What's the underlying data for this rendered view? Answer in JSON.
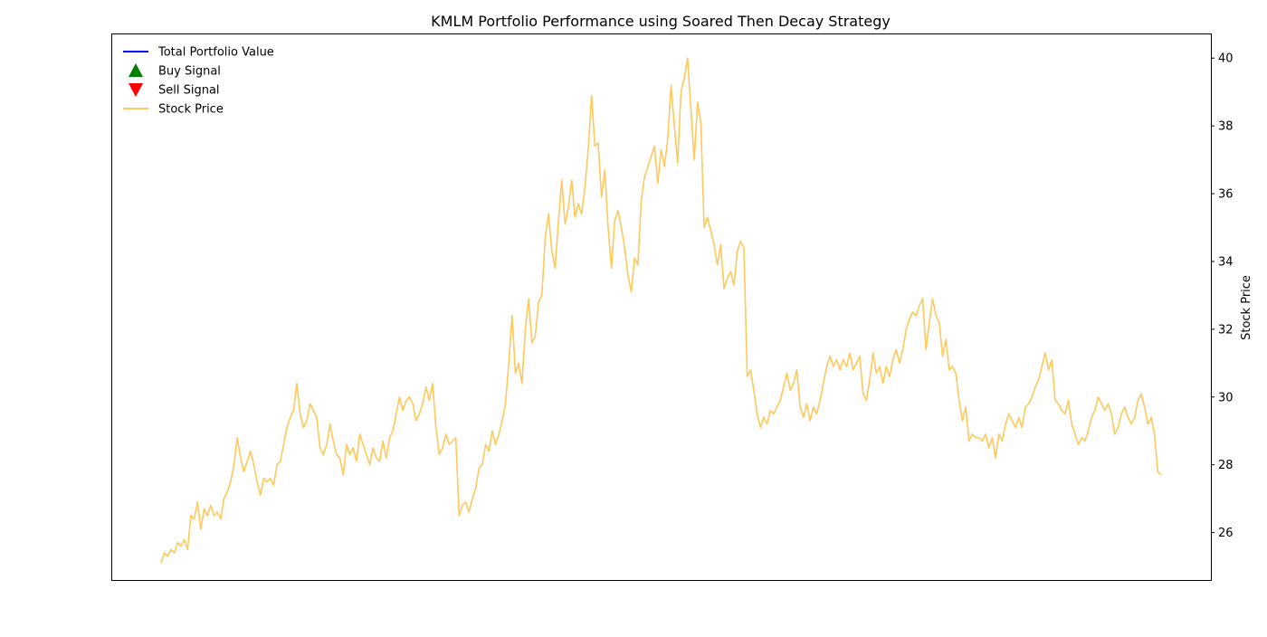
{
  "chart_data": {
    "type": "line",
    "title": "KMLM Portfolio Performance using Soared Then Decay Strategy",
    "xlabel": "",
    "y_right_label": "Stock Price",
    "y_right_lim": [
      24.6,
      40.7
    ],
    "y_right_ticks": [
      26,
      28,
      30,
      32,
      34,
      36,
      38,
      40
    ],
    "grid": false,
    "legend_position": "top-left",
    "legend": [
      {
        "label": "Total Portfolio Value",
        "marker": "line",
        "color": "#0000ff"
      },
      {
        "label": "Buy Signal",
        "marker": "triangle-up",
        "color": "#008000"
      },
      {
        "label": "Sell Signal",
        "marker": "triangle-down",
        "color": "#ff0000"
      },
      {
        "label": "Stock Price",
        "marker": "line",
        "color": "#ffc85a"
      }
    ],
    "series": [
      {
        "name": "Stock Price",
        "color": "#ffc85a",
        "axis": "right",
        "values": [
          25.1,
          25.4,
          25.3,
          25.5,
          25.4,
          25.7,
          25.6,
          25.8,
          25.5,
          26.5,
          26.4,
          26.9,
          26.1,
          26.7,
          26.5,
          26.8,
          26.5,
          26.6,
          26.4,
          27.0,
          27.2,
          27.5,
          28.0,
          28.8,
          28.2,
          27.8,
          28.1,
          28.4,
          28.0,
          27.5,
          27.1,
          27.6,
          27.5,
          27.6,
          27.4,
          28.0,
          28.1,
          28.6,
          29.1,
          29.4,
          29.6,
          30.4,
          29.5,
          29.1,
          29.3,
          29.8,
          29.6,
          29.4,
          28.5,
          28.3,
          28.6,
          29.2,
          28.7,
          28.3,
          28.2,
          27.7,
          28.6,
          28.3,
          28.5,
          28.1,
          28.9,
          28.6,
          28.3,
          28.0,
          28.5,
          28.2,
          28.1,
          28.7,
          28.2,
          28.8,
          29.0,
          29.5,
          30.0,
          29.6,
          29.9,
          30.0,
          29.8,
          29.3,
          29.5,
          29.8,
          30.3,
          29.9,
          30.4,
          29.1,
          28.3,
          28.5,
          28.9,
          28.6,
          28.7,
          28.8,
          26.5,
          26.8,
          26.9,
          26.6,
          27.0,
          27.3,
          27.9,
          28.0,
          28.6,
          28.4,
          29.0,
          28.6,
          28.9,
          29.3,
          29.8,
          31.0,
          32.4,
          30.7,
          31.0,
          30.4,
          32.0,
          32.9,
          31.6,
          31.8,
          32.8,
          33.0,
          34.7,
          35.4,
          34.3,
          33.8,
          35.2,
          36.4,
          35.1,
          35.6,
          36.4,
          35.3,
          35.7,
          35.4,
          36.2,
          37.3,
          38.9,
          37.4,
          37.5,
          35.9,
          36.7,
          35.0,
          33.8,
          35.2,
          35.5,
          35.0,
          34.4,
          33.6,
          33.1,
          34.1,
          33.9,
          35.8,
          36.5,
          36.8,
          37.1,
          37.4,
          36.3,
          37.3,
          36.8,
          37.6,
          39.2,
          38.0,
          36.9,
          39.0,
          39.4,
          40.0,
          38.5,
          37.0,
          38.7,
          38.1,
          35.0,
          35.3,
          34.9,
          34.5,
          33.9,
          34.5,
          33.2,
          33.5,
          33.7,
          33.3,
          34.3,
          34.6,
          34.4,
          30.6,
          30.8,
          30.2,
          29.5,
          29.1,
          29.4,
          29.2,
          29.6,
          29.5,
          29.7,
          29.9,
          30.3,
          30.7,
          30.2,
          30.4,
          30.8,
          29.7,
          29.4,
          29.8,
          29.3,
          29.7,
          29.5,
          29.9,
          30.4,
          30.9,
          31.2,
          30.9,
          31.1,
          30.8,
          31.1,
          30.9,
          31.3,
          30.8,
          31.0,
          31.2,
          30.1,
          29.9,
          30.5,
          31.3,
          30.7,
          30.9,
          30.4,
          30.9,
          30.6,
          31.1,
          31.4,
          31.0,
          31.4,
          32.0,
          32.3,
          32.5,
          32.4,
          32.7,
          32.9,
          31.4,
          32.2,
          32.9,
          32.4,
          32.2,
          31.2,
          31.7,
          30.8,
          30.9,
          30.7,
          29.9,
          29.3,
          29.7,
          28.7,
          28.9,
          28.8,
          28.8,
          28.7,
          28.9,
          28.5,
          28.8,
          28.2,
          28.9,
          28.7,
          29.2,
          29.5,
          29.3,
          29.1,
          29.4,
          29.1,
          29.7,
          29.8,
          30.0,
          30.3,
          30.5,
          30.9,
          31.3,
          30.8,
          31.1,
          29.9,
          29.8,
          29.6,
          29.5,
          29.9,
          29.2,
          28.9,
          28.6,
          28.8,
          28.7,
          29.0,
          29.4,
          29.6,
          30.0,
          29.8,
          29.6,
          29.8,
          29.5,
          28.9,
          29.1,
          29.5,
          29.7,
          29.4,
          29.2,
          29.4,
          29.9,
          30.1,
          29.7,
          29.2,
          29.4,
          28.9,
          27.8,
          27.7
        ]
      }
    ]
  }
}
